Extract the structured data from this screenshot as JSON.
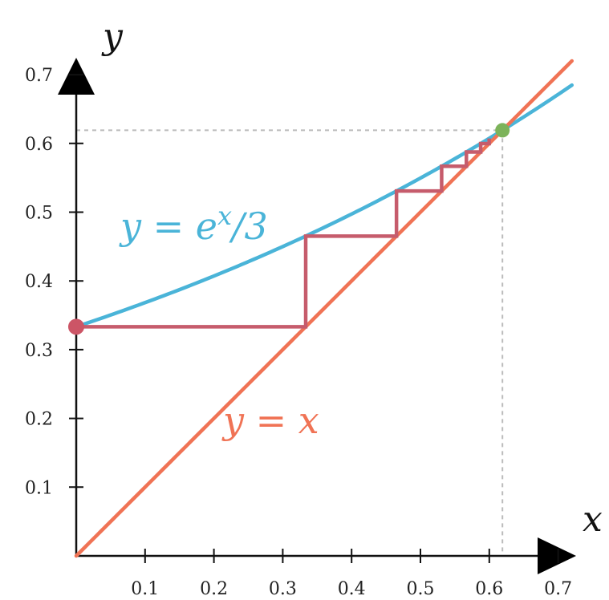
{
  "chart_data": {
    "type": "line",
    "xlabel": "x",
    "ylabel": "y",
    "xlim": [
      0,
      0.72
    ],
    "ylim": [
      0,
      0.72
    ],
    "x_ticks": [
      0.1,
      0.2,
      0.3,
      0.4,
      0.5,
      0.6,
      0.7
    ],
    "y_ticks": [
      0.1,
      0.2,
      0.3,
      0.4,
      0.5,
      0.6,
      0.7
    ],
    "x_tick_labels": [
      "0.1",
      "0.2",
      "0.3",
      "0.4",
      "0.5",
      "0.6",
      "0.7"
    ],
    "y_tick_labels": [
      "0.1",
      "0.2",
      "0.3",
      "0.4",
      "0.5",
      "0.6",
      "0.7"
    ],
    "grid": false,
    "series": [
      {
        "name": "y = e^x/3",
        "label_parts": [
          "y = e",
          "x",
          "/3"
        ],
        "color": "#4ab4d8",
        "function": "exp(x)/3",
        "x_range": [
          0,
          0.72
        ]
      },
      {
        "name": "y = x",
        "label_parts": [
          "y = x"
        ],
        "color": "#f07355",
        "function": "x",
        "x_range": [
          0,
          0.72
        ]
      }
    ],
    "cobweb": {
      "color": "#c65c6c",
      "start_x": 0,
      "iterations": 6
    },
    "annotations": {
      "start_point": {
        "x": 0,
        "y": 0.3333,
        "color": "#cc5566"
      },
      "fixed_point": {
        "x": 0.6191,
        "y": 0.6191,
        "color": "#7cb35a"
      },
      "guide_color": "#bbbbbb"
    }
  }
}
